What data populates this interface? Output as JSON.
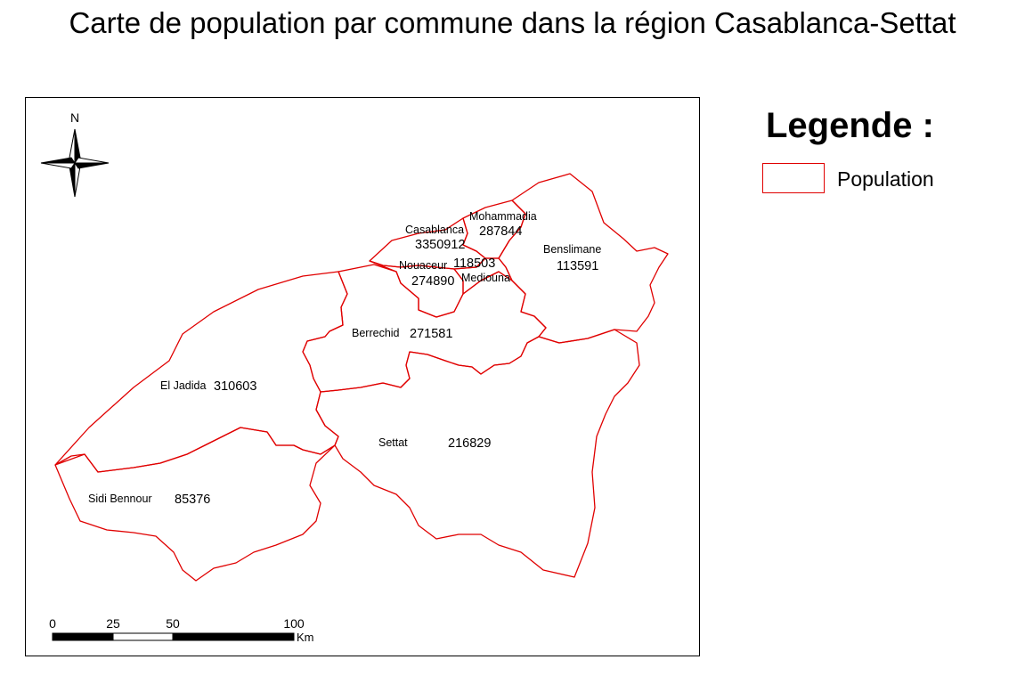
{
  "title": "Carte de population par commune dans la région Casablanca-Settat",
  "legend": {
    "heading": "Legende :",
    "item_label": "Population",
    "item_color": "#e00000"
  },
  "north_arrow": {
    "label": "N"
  },
  "scale_bar": {
    "ticks": [
      "0",
      "25",
      "50",
      "100"
    ],
    "unit": "Km"
  },
  "communes": [
    {
      "name": "Casablanca",
      "population": "3350912"
    },
    {
      "name": "Mohammadia",
      "population": "287844"
    },
    {
      "name": "Benslimane",
      "population": "113591"
    },
    {
      "name": "Nouaceur",
      "population": "274890"
    },
    {
      "name": "Mediouna",
      "population": "118503"
    },
    {
      "name": "Berrechid",
      "population": "271581"
    },
    {
      "name": "El Jadida",
      "population": "310603"
    },
    {
      "name": "Settat",
      "population": "216829"
    },
    {
      "name": "Sidi Bennour",
      "population": "85376"
    }
  ],
  "colors": {
    "boundary": "#e00000",
    "frame": "#000000"
  }
}
